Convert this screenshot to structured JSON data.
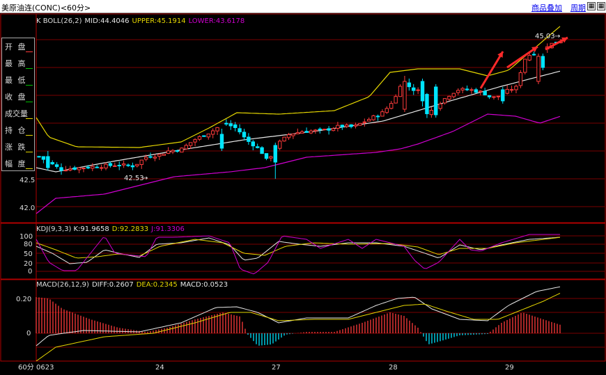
{
  "window": {
    "title": "美原油连(CONC)<60分>",
    "link_add": "商品叠加",
    "link_period": "周期"
  },
  "colors": {
    "up": "#ff3b3b",
    "down": "#00e5ff",
    "mid": "#e8e8e8",
    "upper": "#e6d700",
    "lower": "#d000d0",
    "grid": "#7a0000",
    "border": "#b00000",
    "arrow": "#ff2a2a"
  },
  "main_panel": {
    "header": {
      "indicator": "K  BOLL(26,2)",
      "mid": "MID:44.4046",
      "upper": "UPPER:45.1914",
      "lower": "LOWER:43.6178"
    },
    "y_tick_labels": [
      "42.5",
      "42.0"
    ],
    "max_label": "45.03",
    "min_label": "42.53",
    "info_box": [
      "开 盘",
      "最 高",
      "最 低",
      "收 盘",
      "成交量",
      "持 仓",
      "涨 跌",
      "幅 度"
    ]
  },
  "kdj_panel": {
    "header": {
      "name": "KDJ(9,3,3)",
      "k": "K:91.9658",
      "d": "D:92.2833",
      "j": "J:91.3306"
    },
    "y_tick_labels": [
      "100",
      "80",
      "50",
      "20",
      "0"
    ]
  },
  "macd_panel": {
    "header": {
      "name": "MACD(26,12,9)",
      "diff": "DIFF:0.2607",
      "dea": "DEA:0.2345",
      "macd": "MACD:0.0523"
    },
    "y_tick_labels": [
      "0.20",
      "0"
    ]
  },
  "x_axis": {
    "period": "60分",
    "labels": [
      "0623",
      "24",
      "27",
      "28",
      "29"
    ]
  },
  "chart_data": {
    "type": "candlestick",
    "price_range": [
      41.85,
      45.45
    ],
    "last_values": {
      "MID": 44.4046,
      "UPPER": 45.1914,
      "LOWER": 43.6178,
      "K": 91.9658,
      "D": 92.2833,
      "J": 91.3306,
      "DIFF": 0.2607,
      "DEA": 0.2345,
      "MACD": 0.0523
    },
    "max_price": 45.03,
    "min_price": 42.53,
    "date_labels": [
      "0623",
      "24",
      "27",
      "28",
      "29"
    ]
  }
}
